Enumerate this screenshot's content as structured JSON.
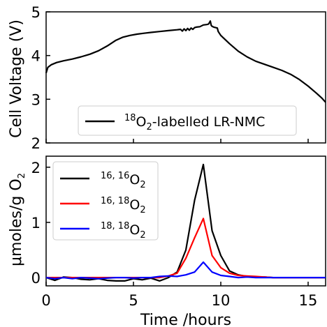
{
  "chart_data": [
    {
      "type": "line",
      "ylabel": "Cell Voltage (V)",
      "xlim": [
        0,
        16
      ],
      "ylim": [
        2,
        5
      ],
      "yticks": [
        "2",
        "3",
        "4",
        "5"
      ],
      "legend_position": "bottom-right",
      "series": [
        {
          "name": "18O2-labelled LR-NMC",
          "legend": {
            "sup": "18",
            "main1": "O",
            "sub": "2",
            "main2": "-labelled LR-NMC"
          },
          "color": "#000000",
          "x": [
            0,
            0.1,
            0.3,
            0.6,
            1,
            1.5,
            2,
            2.5,
            3,
            3.5,
            4,
            4.4,
            4.8,
            5.2,
            5.6,
            6,
            6.5,
            7,
            7.5,
            7.7,
            7.8,
            7.9,
            8.0,
            8.1,
            8.2,
            8.3,
            8.4,
            8.5,
            8.6,
            8.8,
            9.0,
            9.2,
            9.3,
            9.4,
            9.45,
            9.5,
            9.6,
            9.8,
            9.85,
            10,
            10.5,
            11,
            11.5,
            12,
            12.5,
            13,
            13.5,
            14,
            14.5,
            15,
            15.5,
            15.8,
            16
          ],
          "y": [
            3.6,
            3.73,
            3.79,
            3.84,
            3.88,
            3.92,
            3.97,
            4.03,
            4.11,
            4.22,
            4.35,
            4.42,
            4.46,
            4.49,
            4.51,
            4.53,
            4.55,
            4.57,
            4.59,
            4.6,
            4.56,
            4.61,
            4.57,
            4.62,
            4.58,
            4.63,
            4.6,
            4.64,
            4.65,
            4.66,
            4.7,
            4.71,
            4.72,
            4.79,
            4.69,
            4.67,
            4.65,
            4.63,
            4.55,
            4.46,
            4.27,
            4.1,
            3.97,
            3.87,
            3.8,
            3.73,
            3.66,
            3.57,
            3.45,
            3.3,
            3.13,
            3.02,
            2.93
          ]
        }
      ]
    },
    {
      "type": "line",
      "xlabel": "Time /hours",
      "ylabel": "μmoles/g O2",
      "ylabel_parts": {
        "mu": "μ",
        "main": "moles/g O",
        "sub": "2"
      },
      "xlim": [
        0,
        16
      ],
      "ylim": [
        -0.15,
        2.2
      ],
      "xticks": [
        "0",
        "5",
        "10",
        "15"
      ],
      "yticks": [
        "0",
        "1",
        "2"
      ],
      "legend_position": "upper-left",
      "series": [
        {
          "name": "16,16O2",
          "legend": {
            "sup": "16, 16",
            "main": "O",
            "sub": "2"
          },
          "color": "#000000",
          "x": [
            0,
            0.5,
            1,
            1.5,
            2,
            2.5,
            3,
            3.5,
            4,
            4.5,
            5,
            5.5,
            6,
            6.5,
            7,
            7.5,
            8,
            8.5,
            9,
            9.5,
            10,
            10.5,
            11,
            11.5,
            12,
            12.5,
            13,
            13.5,
            14,
            14.5,
            15,
            15.5,
            16
          ],
          "y": [
            0.0,
            -0.05,
            0.01,
            0.0,
            -0.03,
            -0.04,
            -0.02,
            -0.05,
            -0.06,
            -0.06,
            -0.02,
            -0.04,
            -0.01,
            -0.06,
            0.0,
            0.1,
            0.5,
            1.4,
            2.05,
            0.85,
            0.4,
            0.12,
            0.05,
            0.02,
            0.01,
            0.01,
            0.0,
            0.0,
            0.0,
            0.0,
            0.0,
            0.0,
            0.0
          ]
        },
        {
          "name": "16,18O2",
          "legend": {
            "sup": "16, 18",
            "main": "O",
            "sub": "2"
          },
          "color": "#ff0000",
          "x": [
            0,
            0.5,
            1,
            1.5,
            2,
            2.5,
            3,
            3.5,
            4,
            4.5,
            5,
            5.5,
            6,
            6.5,
            7,
            7.5,
            8,
            8.5,
            9,
            9.5,
            10,
            10.5,
            11,
            11.5,
            12,
            12.5,
            13,
            13.5,
            14,
            14.5,
            15,
            15.5,
            16
          ],
          "y": [
            0.0,
            0.0,
            0.0,
            0.0,
            0.0,
            0.0,
            0.0,
            0.0,
            0.0,
            0.0,
            0.0,
            0.0,
            0.0,
            0.0,
            0.03,
            0.08,
            0.35,
            0.72,
            1.07,
            0.4,
            0.18,
            0.08,
            0.04,
            0.03,
            0.02,
            0.01,
            0.0,
            0.0,
            0.0,
            0.0,
            0.0,
            0.0,
            0.0
          ]
        },
        {
          "name": "18,18O2",
          "legend": {
            "sup": "18, 18",
            "main": "O",
            "sub": "2"
          },
          "color": "#0000ff",
          "x": [
            0,
            0.5,
            1,
            1.5,
            2,
            2.5,
            3,
            3.5,
            4,
            4.5,
            5,
            5.5,
            6,
            6.5,
            7,
            7.5,
            8,
            8.5,
            9,
            9.5,
            10,
            10.5,
            11,
            11.5,
            12,
            12.5,
            13,
            13.5,
            14,
            14.5,
            15,
            15.5,
            16
          ],
          "y": [
            0.0,
            -0.02,
            0.0,
            -0.02,
            0.0,
            -0.01,
            -0.02,
            -0.01,
            0.0,
            0.0,
            -0.01,
            0.0,
            0.0,
            0.02,
            0.03,
            0.02,
            0.05,
            0.1,
            0.28,
            0.1,
            0.04,
            0.02,
            0.0,
            0.01,
            0.0,
            0.0,
            0.0,
            0.0,
            0.0,
            0.0,
            0.0,
            0.0,
            0.0
          ]
        }
      ]
    }
  ]
}
